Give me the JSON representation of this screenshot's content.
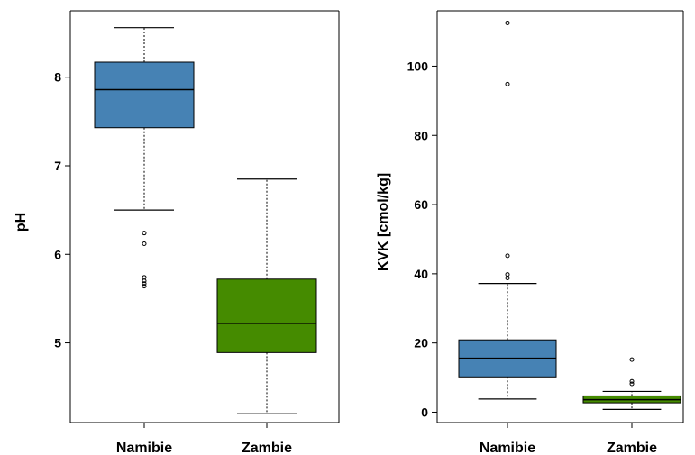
{
  "chart_data": [
    {
      "type": "boxplot",
      "ylabel": "pH",
      "categories": [
        "Namibie",
        "Zambie"
      ],
      "ylim": [
        4.1,
        8.75
      ],
      "yticks": [
        5,
        6,
        7,
        8
      ],
      "grid": false,
      "series": [
        {
          "category": "Namibie",
          "color": "#4682B4",
          "whisker_low": 6.5,
          "q1": 7.43,
          "median": 7.86,
          "q3": 8.17,
          "whisker_high": 8.56,
          "outliers": [
            6.24,
            6.12,
            5.74,
            5.7,
            5.67,
            5.64
          ]
        },
        {
          "category": "Zambie",
          "color": "#458B00",
          "whisker_low": 4.2,
          "q1": 4.89,
          "median": 5.22,
          "q3": 5.72,
          "whisker_high": 6.85,
          "outliers": []
        }
      ]
    },
    {
      "type": "boxplot",
      "ylabel": "KVK [cmol/kg]",
      "categories": [
        "Namibie",
        "Zambie"
      ],
      "ylim": [
        -3,
        116
      ],
      "yticks": [
        0,
        20,
        40,
        60,
        80,
        100
      ],
      "grid": false,
      "series": [
        {
          "category": "Namibie",
          "color": "#4682B4",
          "whisker_low": 3.8,
          "q1": 10.2,
          "median": 15.6,
          "q3": 20.9,
          "whisker_high": 37.2,
          "outliers": [
            112.5,
            94.8,
            45.2,
            39.8,
            38.8
          ]
        },
        {
          "category": "Zambie",
          "color": "#458B00",
          "whisker_low": 0.8,
          "q1": 2.7,
          "median": 3.6,
          "q3": 4.7,
          "whisker_high": 6.0,
          "outliers": [
            15.2,
            8.9,
            8.2
          ]
        }
      ]
    }
  ]
}
